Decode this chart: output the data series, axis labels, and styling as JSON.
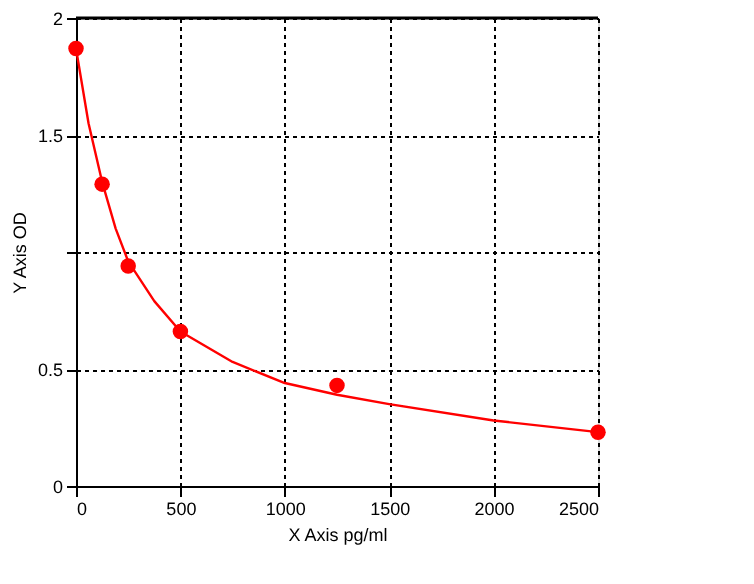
{
  "chart_data": {
    "type": "scatter",
    "xlabel": "X Axis pg/ml",
    "ylabel": "Y Axis OD",
    "series": [
      {
        "color": "#ff0000",
        "marker": "circle",
        "x": [
          0,
          125,
          250,
          500,
          1250,
          2500
        ],
        "values": [
          1.87,
          1.29,
          0.94,
          0.66,
          0.43,
          0.23
        ]
      },
      {
        "type": "line",
        "color": "#ff0000",
        "x": [
          0,
          60,
          125,
          190,
          250,
          375,
          500,
          750,
          1000,
          1250,
          1500,
          2000,
          2500
        ],
        "values": [
          1.87,
          1.55,
          1.3,
          1.1,
          0.96,
          0.79,
          0.66,
          0.53,
          0.44,
          0.39,
          0.35,
          0.28,
          0.23
        ]
      }
    ],
    "xlim": [
      0,
      2500
    ],
    "xticks": [
      0,
      500,
      1000,
      1500,
      2000,
      2500
    ],
    "ylim": [
      0,
      2
    ],
    "yticks": [
      0,
      0.5,
      {
        "value": 1,
        "label": null
      },
      1.5,
      2
    ],
    "grid": true
  }
}
